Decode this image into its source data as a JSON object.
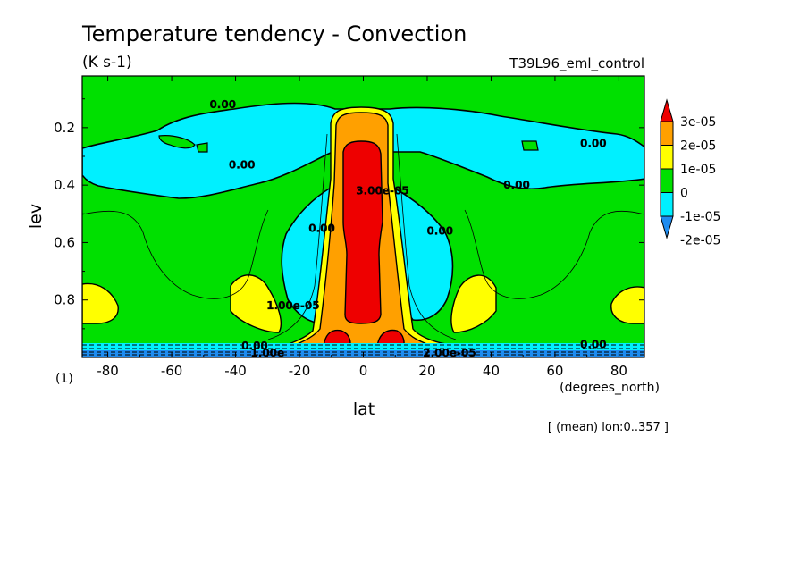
{
  "chart_data": {
    "type": "heatmap",
    "title": "Temperature tendency - Convection",
    "units": "(K s-1)",
    "experiment": "T39L96_eml_control",
    "xlabel": "lat",
    "x_units": "(degrees_north)",
    "ylabel": "lev",
    "y_units": "(1)",
    "note": "[ (mean) lon:0..357 ]",
    "xlim": [
      -88,
      88
    ],
    "ylim": [
      1.0,
      0.02
    ],
    "x_ticks": [
      -80,
      -60,
      -40,
      -20,
      0,
      20,
      40,
      60,
      80
    ],
    "x_tick_labels": [
      "-80",
      "-60",
      "-40",
      "-20",
      "0",
      "20",
      "40",
      "60",
      "80"
    ],
    "y_ticks": [
      0.2,
      0.4,
      0.6,
      0.8
    ],
    "y_tick_labels": [
      "0.2",
      "0.4",
      "0.6",
      "0.8"
    ],
    "colorbar": {
      "levels": [
        -2e-05,
        -1e-05,
        0,
        1e-05,
        2e-05,
        3e-05
      ],
      "labels": [
        "-2e-05",
        "-1e-05",
        "0",
        "1e-05",
        "2e-05",
        "3e-05"
      ],
      "colors": [
        "#1e8cf0",
        "#00f0ff",
        "#00e000",
        "#ffff00",
        "#ffa000",
        "#ee0000"
      ]
    },
    "contour_labels": [
      {
        "text": "0.00",
        "lat": -44,
        "lev": 0.12
      },
      {
        "text": "0.00",
        "lat": -38,
        "lev": 0.33
      },
      {
        "text": "0.00",
        "lat": -13,
        "lev": 0.55
      },
      {
        "text": "0.00",
        "lat": 24,
        "lev": 0.56
      },
      {
        "text": "0.00",
        "lat": 48,
        "lev": 0.4
      },
      {
        "text": "0.00",
        "lat": 72,
        "lev": 0.255
      },
      {
        "text": "0.00",
        "lat": -34,
        "lev": 0.96
      },
      {
        "text": "0.00",
        "lat": 72,
        "lev": 0.955
      },
      {
        "text": "1.00e-05",
        "lat": -22,
        "lev": 0.82
      },
      {
        "text": "3.00e-05",
        "lat": 6,
        "lev": 0.42
      },
      {
        "text": "2.00e-05",
        "lat": 27,
        "lev": 0.985
      },
      {
        "text": "1.00e",
        "lat": -30,
        "lev": 0.985
      }
    ]
  }
}
